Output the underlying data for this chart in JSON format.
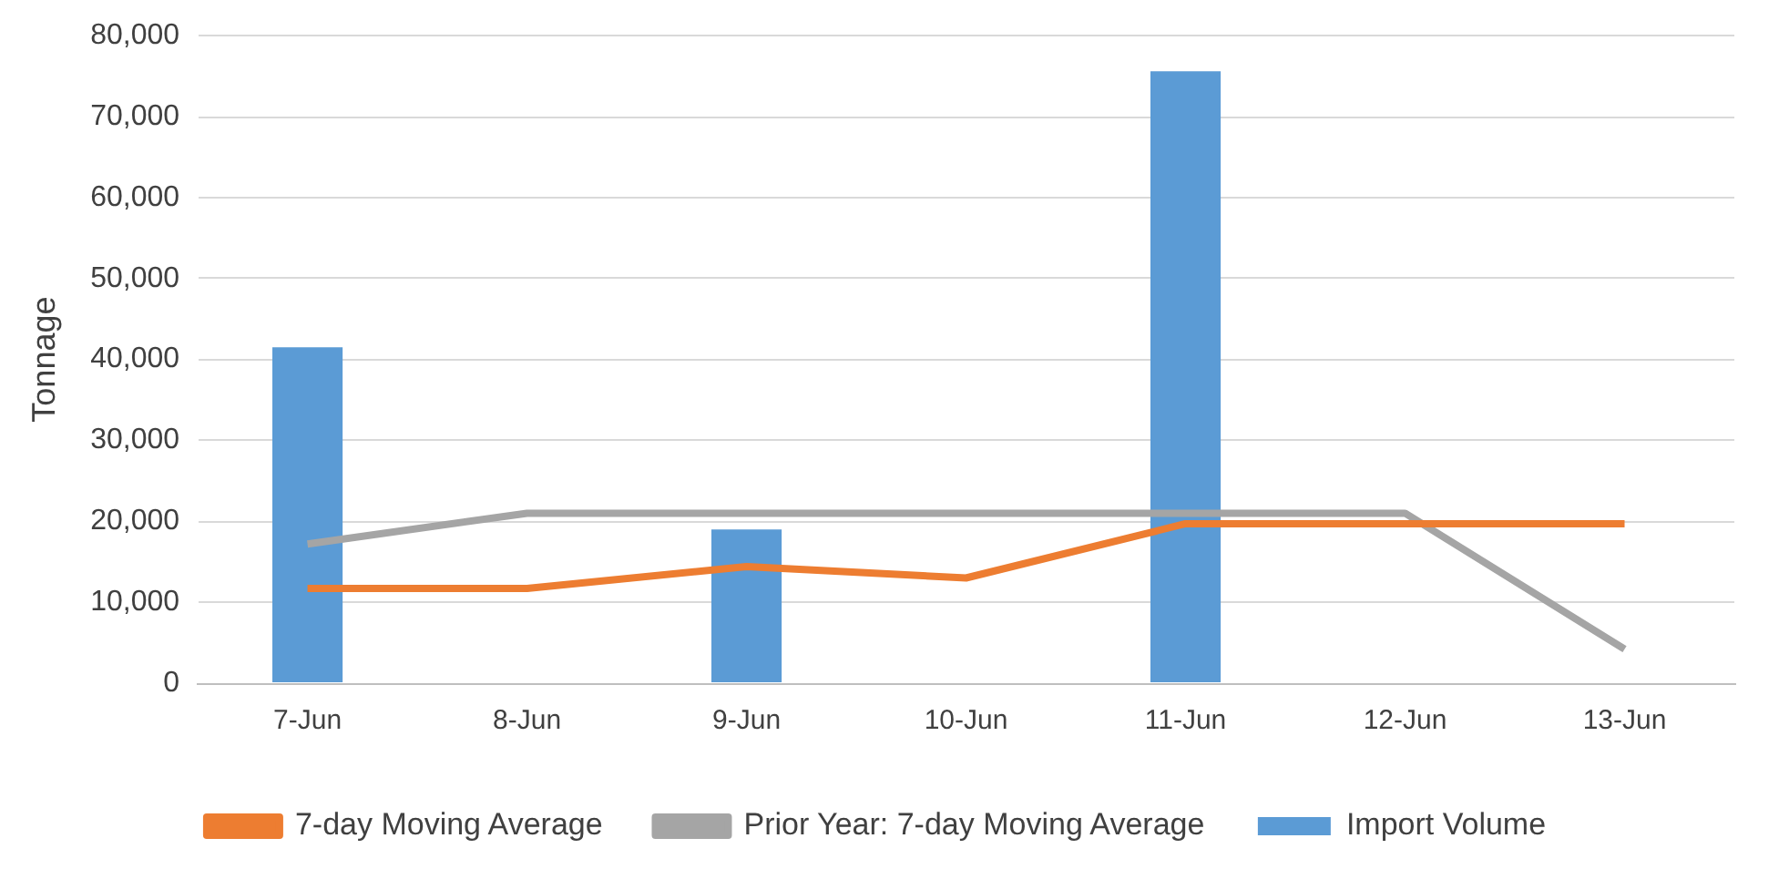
{
  "chart_data": {
    "type": "bar",
    "ylabel": "Tonnage",
    "categories": [
      "7-Jun",
      "8-Jun",
      "9-Jun",
      "10-Jun",
      "11-Jun",
      "12-Jun",
      "13-Jun"
    ],
    "series": [
      {
        "name": "Import Volume",
        "color": "#5b9bd5",
        "values": [
          41500,
          null,
          19000,
          null,
          75600,
          null,
          null
        ]
      },
      {
        "name": "7-day Moving Average",
        "type": "line",
        "color": "#ed7d31",
        "values": [
          11700,
          11700,
          14400,
          13000,
          19700,
          19700,
          19700
        ]
      },
      {
        "name": "Prior Year: 7-day Moving Average",
        "type": "line",
        "color": "#a5a5a5",
        "values": [
          17200,
          21000,
          21000,
          21000,
          21000,
          21000,
          4200
        ]
      }
    ],
    "ylim": [
      0,
      80000
    ],
    "yticks": [
      0,
      {
        "value": 10000,
        "label": "10,000"
      },
      {
        "value": 20000,
        "label": "20,000"
      },
      {
        "value": 30000,
        "label": "30,000"
      },
      {
        "value": 40000,
        "label": "40,000"
      },
      {
        "value": 50000,
        "label": "50,000"
      },
      {
        "value": 60000,
        "label": "60,000"
      },
      {
        "value": 70000,
        "label": "70,000"
      },
      {
        "value": 80000,
        "label": "80,000"
      }
    ],
    "grid": "y",
    "legend": "bottom",
    "marker": "none",
    "line_style": "solid"
  }
}
